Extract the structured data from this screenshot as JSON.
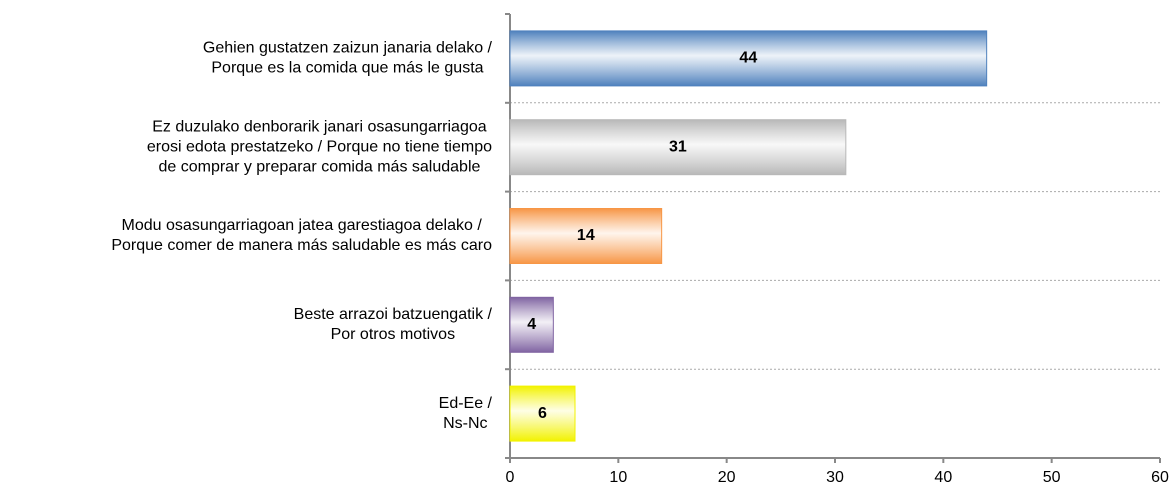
{
  "chart_data": {
    "type": "bar",
    "orientation": "horizontal",
    "categories": [
      [
        "Gehien gustatzen zaizun janaria delako /",
        "Porque es la comida que más le gusta"
      ],
      [
        "Ez duzulako denborarik janari osasungarriagoa",
        "erosi edota prestatzeko / Porque no tiene tiempo",
        "de comprar y preparar comida más saludable"
      ],
      [
        "Modu osasungarriagoan jatea garestiagoa delako /",
        "Porque comer de manera más saludable es más caro"
      ],
      [
        "Beste arrazoi batzuengatik /",
        "Por otros motivos"
      ],
      [
        "Ed-Ee /",
        "Ns-Nc"
      ]
    ],
    "values": [
      44,
      31,
      14,
      4,
      6
    ],
    "colors": [
      "#4f81bd",
      "#b8b8b8",
      "#f79646",
      "#8064a2",
      "#f2f200"
    ],
    "xlim": [
      0,
      60
    ],
    "xticks": [
      0,
      10,
      20,
      30,
      40,
      50,
      60
    ]
  }
}
